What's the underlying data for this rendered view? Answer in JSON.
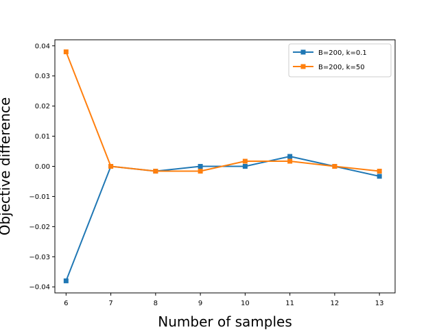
{
  "chart_data": {
    "type": "line",
    "title": "",
    "xlabel": "Number of samples",
    "ylabel": "Objective difference",
    "x": [
      6,
      7,
      8,
      9,
      10,
      11,
      12,
      13
    ],
    "xlim": [
      5.75,
      13.35
    ],
    "ylim": [
      -0.042,
      0.042
    ],
    "xticks": [
      6,
      7,
      8,
      9,
      10,
      11,
      12,
      13
    ],
    "xtick_labels": [
      "6",
      "7",
      "8",
      "9",
      "10",
      "11",
      "12",
      "13"
    ],
    "yticks": [
      -0.04,
      -0.03,
      -0.02,
      -0.01,
      0.0,
      0.01,
      0.02,
      0.03,
      0.04
    ],
    "ytick_labels": [
      "−0.04",
      "−0.03",
      "−0.02",
      "−0.01",
      "0.00",
      "0.01",
      "0.02",
      "0.03",
      "0.04"
    ],
    "grid": false,
    "legend_position": "top-right",
    "series": [
      {
        "name": "B=200, k=0.1",
        "color": "#1f77b4",
        "marker": "square",
        "values": [
          -0.038,
          0.0,
          -0.0016,
          0.0,
          0.0,
          0.0033,
          0.0,
          -0.0033
        ]
      },
      {
        "name": "B=200, k=50",
        "color": "#ff7f0e",
        "marker": "square",
        "values": [
          0.038,
          0.0,
          -0.0016,
          -0.0016,
          0.0017,
          0.0017,
          0.0,
          -0.0016
        ]
      }
    ]
  }
}
